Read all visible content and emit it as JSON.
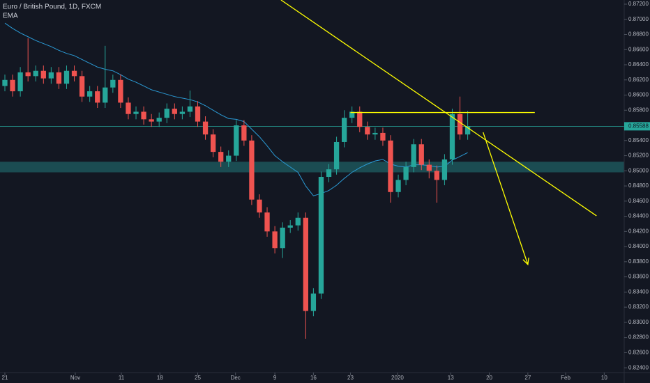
{
  "chart_data": {
    "type": "candlestick",
    "title": "Euro / British Pound, 1D, FXCM",
    "indicator": "EMA",
    "open": [
      0.8612,
      0.862,
      0.8605,
      0.863,
      0.8625,
      0.8632,
      0.8622,
      0.863,
      0.8615,
      0.8632,
      0.8625,
      0.8598,
      0.8605,
      0.859,
      0.861,
      0.862,
      0.859,
      0.8575,
      0.8578,
      0.8568,
      0.8565,
      0.857,
      0.8582,
      0.8575,
      0.8578,
      0.8585,
      0.8565,
      0.8548,
      0.8525,
      0.8512,
      0.852,
      0.856,
      0.854,
      0.8462,
      0.8445,
      0.842,
      0.8398,
      0.8425,
      0.8428,
      0.8438,
      0.8315,
      0.8338,
      0.8492,
      0.8502,
      0.8538,
      0.857,
      0.8578,
      0.8558,
      0.8548,
      0.855,
      0.854,
      0.8472,
      0.8488,
      0.8505,
      0.8535,
      0.8508,
      0.85,
      0.8488,
      0.8515,
      0.8575,
      0.8548
    ],
    "high": [
      0.8627,
      0.8627,
      0.8637,
      0.8675,
      0.8639,
      0.8639,
      0.8637,
      0.8637,
      0.8639,
      0.8639,
      0.8632,
      0.8612,
      0.8612,
      0.8665,
      0.8627,
      0.8627,
      0.8597,
      0.8585,
      0.8585,
      0.8575,
      0.8577,
      0.8589,
      0.8589,
      0.8585,
      0.8606,
      0.8592,
      0.8572,
      0.8555,
      0.8532,
      0.8527,
      0.8567,
      0.8567,
      0.8547,
      0.8469,
      0.8452,
      0.8427,
      0.8432,
      0.8435,
      0.8445,
      0.8445,
      0.8345,
      0.8499,
      0.8509,
      0.8545,
      0.858,
      0.8585,
      0.8585,
      0.8565,
      0.8557,
      0.8557,
      0.8547,
      0.8495,
      0.8512,
      0.8542,
      0.8542,
      0.8515,
      0.8507,
      0.8522,
      0.8582,
      0.8598,
      0.8579
    ],
    "low": [
      0.8605,
      0.8598,
      0.8598,
      0.8618,
      0.8618,
      0.8615,
      0.8615,
      0.8608,
      0.8608,
      0.8618,
      0.8591,
      0.8591,
      0.8583,
      0.8583,
      0.8603,
      0.8583,
      0.8568,
      0.8568,
      0.8561,
      0.8558,
      0.8558,
      0.8563,
      0.8568,
      0.8568,
      0.8571,
      0.8558,
      0.8541,
      0.8518,
      0.8505,
      0.8505,
      0.8513,
      0.8533,
      0.8455,
      0.8438,
      0.8413,
      0.8391,
      0.8385,
      0.8418,
      0.8421,
      0.8278,
      0.8308,
      0.8331,
      0.8485,
      0.8495,
      0.8531,
      0.8563,
      0.8551,
      0.8541,
      0.8541,
      0.8533,
      0.8458,
      0.8465,
      0.8481,
      0.8498,
      0.8501,
      0.849,
      0.8458,
      0.8481,
      0.8508,
      0.8541,
      0.8541
    ],
    "close": [
      0.862,
      0.8605,
      0.863,
      0.8625,
      0.8632,
      0.8622,
      0.863,
      0.8615,
      0.8632,
      0.8625,
      0.8598,
      0.8605,
      0.859,
      0.861,
      0.862,
      0.859,
      0.8575,
      0.8578,
      0.8568,
      0.8565,
      0.857,
      0.8582,
      0.8575,
      0.8578,
      0.8585,
      0.8565,
      0.8548,
      0.8525,
      0.8512,
      0.852,
      0.856,
      0.854,
      0.8462,
      0.8445,
      0.842,
      0.8398,
      0.8425,
      0.8428,
      0.8438,
      0.8315,
      0.8338,
      0.8492,
      0.8502,
      0.8538,
      0.857,
      0.8578,
      0.8558,
      0.8548,
      0.855,
      0.854,
      0.8472,
      0.8488,
      0.8505,
      0.8535,
      0.8508,
      0.85,
      0.8488,
      0.8515,
      0.8575,
      0.8548,
      0.85588
    ],
    "ema": [
      0.8695,
      0.8688,
      0.8682,
      0.8677,
      0.8672,
      0.8668,
      0.8664,
      0.8659,
      0.8655,
      0.8652,
      0.8647,
      0.8642,
      0.8637,
      0.8634,
      0.8632,
      0.8627,
      0.8621,
      0.8617,
      0.8612,
      0.8607,
      0.8604,
      0.8601,
      0.8598,
      0.8596,
      0.8594,
      0.8591,
      0.8586,
      0.858,
      0.8574,
      0.8569,
      0.8568,
      0.8565,
      0.8555,
      0.8545,
      0.8533,
      0.852,
      0.8512,
      0.8505,
      0.8498,
      0.848,
      0.8467,
      0.847,
      0.8474,
      0.8481,
      0.849,
      0.8498,
      0.8504,
      0.8509,
      0.8513,
      0.8515,
      0.8509,
      0.8506,
      0.8505,
      0.8508,
      0.8508,
      0.8507,
      0.8505,
      0.8506,
      0.8514,
      0.8519,
      0.8524
    ],
    "up_color": "#26a69a",
    "down_color": "#ef5350",
    "ema_color": "#2b9bd6",
    "drawing_color": "#ffff00",
    "last_price": {
      "value": 0.85588,
      "label": "0.85588"
    },
    "zone": [
      0.8498,
      0.8512
    ],
    "level": {
      "x": [
        44.8,
        68.7
      ],
      "y": 0.8577
    },
    "trend_line": {
      "x": [
        35.8,
        76.7
      ],
      "y": [
        0.87255,
        0.84406
      ]
    },
    "arrow": {
      "x": [
        62.0,
        67.8
      ],
      "y": [
        0.85509,
        0.83763
      ]
    },
    "xlim": [
      -0.633,
      80.29
    ],
    "ylim": [
      0.82337,
      0.87255
    ],
    "xticks": [
      {
        "value": 0,
        "label": "21"
      },
      {
        "value": 9.13,
        "label": "Nov"
      },
      {
        "value": 15.1,
        "label": "11"
      },
      {
        "value": 20.1,
        "label": "18"
      },
      {
        "value": 25.0,
        "label": "25"
      },
      {
        "value": 29.9,
        "label": "Dec"
      },
      {
        "value": 35.0,
        "label": "9"
      },
      {
        "value": 40.0,
        "label": "16"
      },
      {
        "value": 44.8,
        "label": "23"
      },
      {
        "value": 50.9,
        "label": "2020"
      },
      {
        "value": 57.8,
        "label": "13"
      },
      {
        "value": 62.8,
        "label": "20"
      },
      {
        "value": 67.8,
        "label": "27"
      },
      {
        "value": 72.7,
        "label": "Feb"
      },
      {
        "value": 77.7,
        "label": "10"
      }
    ],
    "yticks": [
      {
        "value": 0.824,
        "label": "0.82400"
      },
      {
        "value": 0.826,
        "label": "0.82600"
      },
      {
        "value": 0.828,
        "label": "0.82800"
      },
      {
        "value": 0.83,
        "label": "0.83000"
      },
      {
        "value": 0.832,
        "label": "0.83200"
      },
      {
        "value": 0.834,
        "label": "0.83400"
      },
      {
        "value": 0.836,
        "label": "0.83600"
      },
      {
        "value": 0.838,
        "label": "0.83800"
      },
      {
        "value": 0.84,
        "label": "0.84000"
      },
      {
        "value": 0.842,
        "label": "0.84200"
      },
      {
        "value": 0.844,
        "label": "0.84400"
      },
      {
        "value": 0.846,
        "label": "0.84600"
      },
      {
        "value": 0.848,
        "label": "0.84800"
      },
      {
        "value": 0.85,
        "label": "0.85000"
      },
      {
        "value": 0.852,
        "label": "0.85200"
      },
      {
        "value": 0.854,
        "label": "0.85400"
      },
      {
        "value": 0.856,
        "label": "0.85600"
      },
      {
        "value": 0.858,
        "label": "0.85800"
      },
      {
        "value": 0.86,
        "label": "0.86000"
      },
      {
        "value": 0.862,
        "label": "0.86200"
      },
      {
        "value": 0.864,
        "label": "0.86400"
      },
      {
        "value": 0.866,
        "label": "0.86600"
      },
      {
        "value": 0.868,
        "label": "0.86800"
      },
      {
        "value": 0.87,
        "label": "0.87000"
      },
      {
        "value": 0.872,
        "label": "0.87200"
      }
    ]
  }
}
